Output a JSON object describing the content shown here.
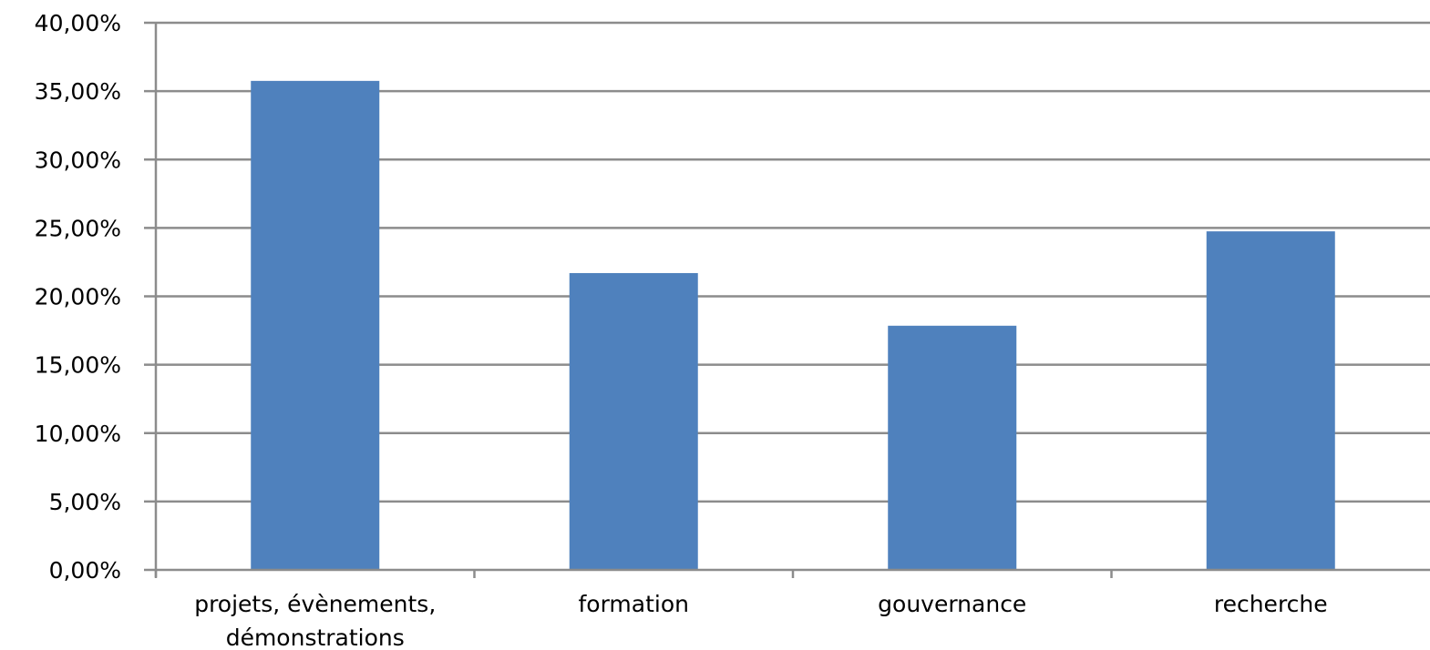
{
  "chart_data": {
    "type": "bar",
    "categories": [
      [
        "projets, évènements,",
        "démonstrations"
      ],
      [
        "formation"
      ],
      [
        "gouvernance"
      ],
      [
        "recherche"
      ]
    ],
    "values": [
      35.75,
      21.7,
      17.85,
      24.75
    ],
    "ylim": [
      0,
      40
    ],
    "y_ticks": [
      "0,00%",
      "5,00%",
      "10,00%",
      "15,00%",
      "20,00%",
      "25,00%",
      "30,00%",
      "35,00%",
      "40,00%"
    ],
    "y_tick_values": [
      0,
      5,
      10,
      15,
      20,
      25,
      30,
      35,
      40
    ],
    "grid": true,
    "legend": "none",
    "title": "",
    "xlabel": "",
    "ylabel": "",
    "bar_color": "#4f81bd",
    "grid_color": "#8c8c8c"
  }
}
